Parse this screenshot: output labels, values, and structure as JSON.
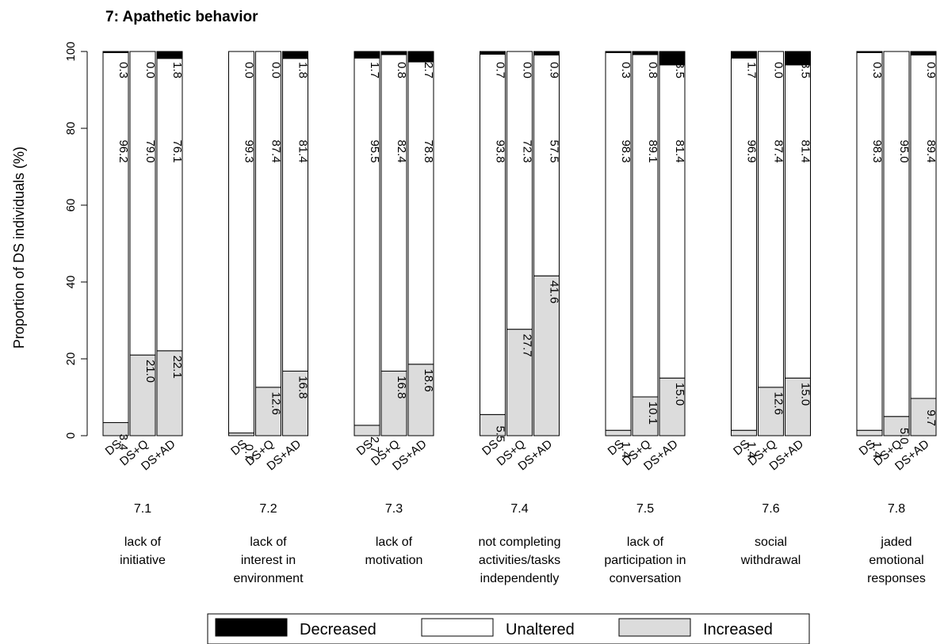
{
  "chart_data": {
    "type": "bar",
    "stacked": true,
    "title": "7: Apathetic behavior",
    "ylabel": "Proportion of DS individuals (%)",
    "ylim": [
      0,
      100
    ],
    "yticks": [
      0,
      20,
      40,
      60,
      80,
      100
    ],
    "bar_labels": [
      "DS",
      "DS+Q",
      "DS+AD"
    ],
    "groups": [
      {
        "id": "7.1",
        "desc": [
          "lack of",
          "initiative"
        ],
        "bars": [
          {
            "label": "DS",
            "increased": 3.4,
            "unaltered": 96.2,
            "decreased": 0.3
          },
          {
            "label": "DS+Q",
            "increased": 21.0,
            "unaltered": 79.0,
            "decreased": 0.0
          },
          {
            "label": "DS+AD",
            "increased": 22.1,
            "unaltered": 76.1,
            "decreased": 1.8
          }
        ]
      },
      {
        "id": "7.2",
        "desc": [
          "lack of",
          "interest in",
          "environment"
        ],
        "bars": [
          {
            "label": "DS",
            "increased": 0.7,
            "unaltered": 99.3,
            "decreased": 0.0
          },
          {
            "label": "DS+Q",
            "increased": 12.6,
            "unaltered": 87.4,
            "decreased": 0.0
          },
          {
            "label": "DS+AD",
            "increased": 16.8,
            "unaltered": 81.4,
            "decreased": 1.8
          }
        ]
      },
      {
        "id": "7.3",
        "desc": [
          "lack of",
          "motivation"
        ],
        "bars": [
          {
            "label": "DS",
            "increased": 2.7,
            "unaltered": 95.5,
            "decreased": 1.7
          },
          {
            "label": "DS+Q",
            "increased": 16.8,
            "unaltered": 82.4,
            "decreased": 0.8
          },
          {
            "label": "DS+AD",
            "increased": 18.6,
            "unaltered": 78.8,
            "decreased": 2.7
          }
        ]
      },
      {
        "id": "7.4",
        "desc": [
          "not completing",
          "activities/tasks",
          "independently"
        ],
        "bars": [
          {
            "label": "DS",
            "increased": 5.5,
            "unaltered": 93.8,
            "decreased": 0.7
          },
          {
            "label": "DS+Q",
            "increased": 27.7,
            "unaltered": 72.3,
            "decreased": 0.0
          },
          {
            "label": "DS+AD",
            "increased": 41.6,
            "unaltered": 57.5,
            "decreased": 0.9
          }
        ]
      },
      {
        "id": "7.5",
        "desc": [
          "lack of",
          "participation in",
          "conversation"
        ],
        "bars": [
          {
            "label": "DS",
            "increased": 1.4,
            "unaltered": 98.3,
            "decreased": 0.3
          },
          {
            "label": "DS+Q",
            "increased": 10.1,
            "unaltered": 89.1,
            "decreased": 0.8
          },
          {
            "label": "DS+AD",
            "increased": 15.0,
            "unaltered": 81.4,
            "decreased": 3.5
          }
        ]
      },
      {
        "id": "7.6",
        "desc": [
          "social",
          "withdrawal"
        ],
        "bars": [
          {
            "label": "DS",
            "increased": 1.4,
            "unaltered": 96.9,
            "decreased": 1.7
          },
          {
            "label": "DS+Q",
            "increased": 12.6,
            "unaltered": 87.4,
            "decreased": 0.0
          },
          {
            "label": "DS+AD",
            "increased": 15.0,
            "unaltered": 81.4,
            "decreased": 3.5
          }
        ]
      },
      {
        "id": "7.8",
        "desc": [
          "jaded",
          "emotional",
          "responses"
        ],
        "bars": [
          {
            "label": "DS",
            "increased": 1.4,
            "unaltered": 98.3,
            "decreased": 0.3
          },
          {
            "label": "DS+Q",
            "increased": 5.0,
            "unaltered": 95.0,
            "decreased": null
          },
          {
            "label": "DS+AD",
            "increased": 9.7,
            "unaltered": 89.4,
            "decreased": 0.9
          }
        ]
      }
    ],
    "legend": {
      "position": "bottom",
      "items": [
        {
          "name": "Decreased",
          "color": "#000000"
        },
        {
          "name": "Unaltered",
          "color": "#ffffff"
        },
        {
          "name": "Increased",
          "color": "#dcdcdc"
        }
      ]
    },
    "colors": {
      "decreased": "#000000",
      "unaltered": "#ffffff",
      "increased": "#dcdcdc"
    },
    "grid": false
  }
}
